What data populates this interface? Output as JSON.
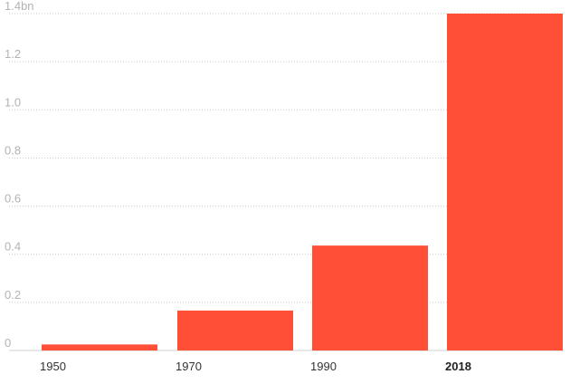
{
  "chart_data": {
    "type": "bar",
    "categories": [
      "1950",
      "1970",
      "1990",
      "2018"
    ],
    "highlight_category": "2018",
    "values": [
      0.025,
      0.166,
      0.436,
      1.4
    ],
    "y_ticks": [
      "0",
      "0.2",
      "0.4",
      "0.6",
      "0.8",
      "1.0",
      "1.2",
      "1.4bn"
    ],
    "ylim": [
      0,
      1.4
    ],
    "grid": true,
    "bar_color": "#ff4f37",
    "title": "",
    "xlabel": "",
    "ylabel": ""
  }
}
